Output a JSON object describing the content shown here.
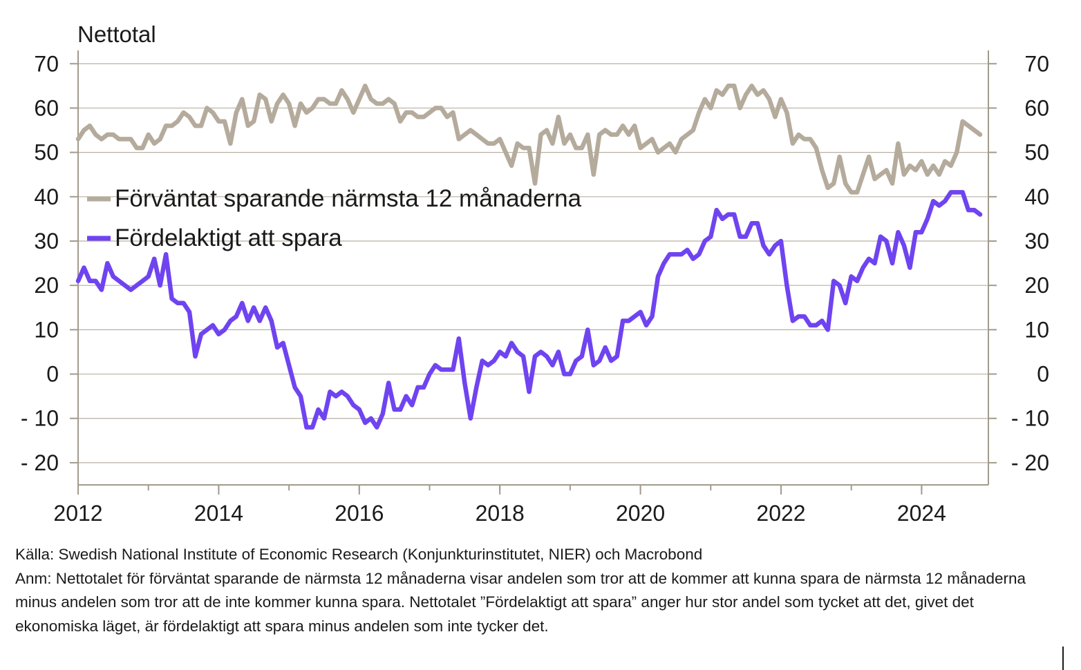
{
  "chart_data": {
    "type": "line",
    "y_unit_label": "Nettotal",
    "ylim": [
      -25,
      73
    ],
    "y_ticks": [
      70,
      60,
      50,
      40,
      30,
      20,
      10,
      0,
      -10,
      -20
    ],
    "y_tick_labels": [
      "70",
      "60",
      "50",
      "40",
      "30",
      "20",
      "10",
      "0",
      "- 10",
      "- 20"
    ],
    "x_tick_labels": [
      "2012",
      "2014",
      "2016",
      "2018",
      "2020",
      "2022",
      "2024"
    ],
    "x_ticks": [
      2012,
      2014,
      2016,
      2018,
      2020,
      2022,
      2024
    ],
    "xlim": [
      2012,
      2024.95
    ],
    "x_start": 2012.0,
    "x_step": 0.08333,
    "grid": "horizontal",
    "legend_position": "top-left",
    "colors": {
      "savings_expect": "#b5ab9c",
      "favorable": "#6f44f0",
      "grid": "#b8b0a3",
      "axis": "#a39a8c"
    },
    "series": [
      {
        "name": "Förväntat sparande närmsta 12 månaderna",
        "color": "#b5ab9c",
        "values": [
          53,
          55,
          56,
          54,
          53,
          54,
          54,
          53,
          53,
          53,
          51,
          51,
          54,
          52,
          53,
          56,
          56,
          57,
          59,
          58,
          56,
          56,
          60,
          59,
          57,
          57,
          52,
          59,
          62,
          56,
          57,
          63,
          62,
          57,
          61,
          63,
          61,
          56,
          61,
          59,
          60,
          62,
          62,
          61,
          61,
          64,
          62,
          59,
          62,
          65,
          62,
          61,
          61,
          62,
          61,
          57,
          59,
          59,
          58,
          58,
          59,
          60,
          60,
          58,
          59,
          53,
          54,
          55,
          54,
          53,
          52,
          52,
          53,
          50,
          47,
          52,
          51,
          51,
          43,
          54,
          55,
          52,
          58,
          52,
          54,
          51,
          51,
          54,
          45,
          54,
          55,
          54,
          54,
          56,
          54,
          56,
          51,
          52,
          53,
          50,
          51,
          52,
          50,
          53,
          54,
          55,
          59,
          62,
          60,
          64,
          63,
          65,
          65,
          60,
          63,
          65,
          63,
          64,
          62,
          58,
          62,
          59,
          52,
          54,
          53,
          53,
          51,
          46,
          42,
          43,
          49,
          43,
          41,
          41,
          45,
          49,
          44,
          45,
          46,
          43,
          52,
          45,
          47,
          46,
          48,
          45,
          47,
          45,
          48,
          47,
          50,
          57,
          56,
          55,
          54
        ]
      },
      {
        "name": "Fördelaktigt att spara",
        "color": "#6f44f0",
        "values": [
          21,
          24,
          21,
          21,
          19,
          25,
          22,
          21,
          20,
          19,
          20,
          21,
          22,
          26,
          20,
          27,
          17,
          16,
          16,
          14,
          4,
          9,
          10,
          11,
          9,
          10,
          12,
          13,
          16,
          12,
          15,
          12,
          15,
          12,
          6,
          7,
          2,
          -3,
          -5,
          -12,
          -12,
          -8,
          -10,
          -4,
          -5,
          -4,
          -5,
          -7,
          -8,
          -11,
          -10,
          -12,
          -9,
          -2,
          -8,
          -8,
          -5,
          -7,
          -3,
          -3,
          0,
          2,
          1,
          1,
          1,
          8,
          -2,
          -10,
          -3,
          3,
          2,
          3,
          5,
          4,
          7,
          5,
          4,
          -4,
          4,
          5,
          4,
          2,
          5,
          0,
          0,
          3,
          4,
          10,
          2,
          3,
          6,
          3,
          4,
          12,
          12,
          13,
          14,
          11,
          13,
          22,
          25,
          27,
          27,
          27,
          28,
          26,
          27,
          30,
          31,
          37,
          35,
          36,
          36,
          31,
          31,
          34,
          34,
          29,
          27,
          29,
          30,
          20,
          12,
          13,
          13,
          11,
          11,
          12,
          10,
          21,
          20,
          16,
          22,
          21,
          24,
          26,
          25,
          31,
          30,
          25,
          32,
          29,
          24,
          32,
          32,
          35,
          39,
          38,
          39,
          41,
          41,
          41,
          37,
          37,
          36
        ]
      }
    ]
  },
  "footer": {
    "source": "Källa: Swedish National Institute of Economic Research (Konjunkturinstitutet, NIER) och Macrobond",
    "note": "Anm: Nettotalet för förväntat sparande de närmsta 12 månaderna visar andelen som tror att de kommer att kunna spara de närmsta 12 månaderna minus andelen som tror att de inte kommer kunna spara. Nettotalet ”Fördelaktigt att spara” anger hur stor andel som tycket att det, givet det ekonomiska läget, är fördelaktigt att spara minus andelen som inte tycker det."
  }
}
